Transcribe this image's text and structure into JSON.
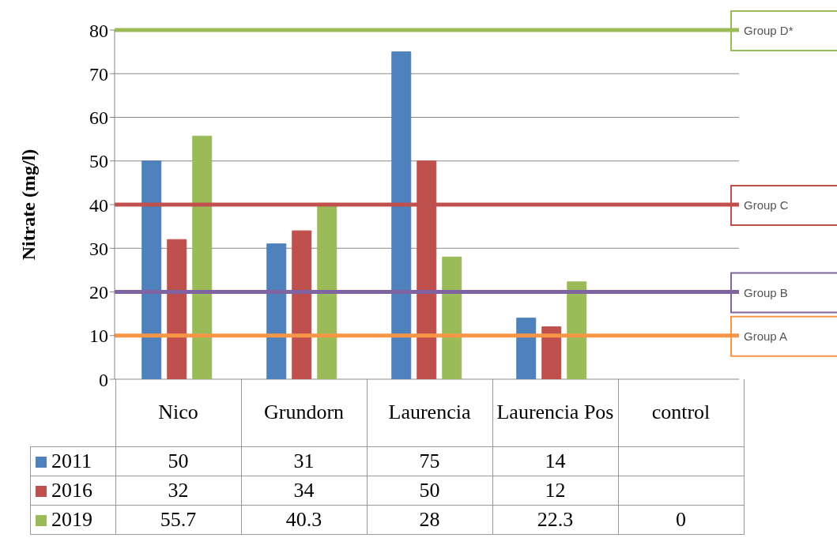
{
  "chart_data": {
    "type": "bar",
    "ylabel": "Nitrate (mg/l)",
    "categories": [
      "Nico",
      "Grundorn",
      "Laurencia",
      "Laurencia Pos",
      "control"
    ],
    "series": [
      {
        "name": "2011",
        "color": "#4f81bd",
        "values": [
          50,
          31,
          75,
          14,
          null
        ]
      },
      {
        "name": "2016",
        "color": "#c0504d",
        "values": [
          32,
          34,
          50,
          12,
          null
        ]
      },
      {
        "name": "2019",
        "color": "#9bbb59",
        "values": [
          55.7,
          40.3,
          28,
          22.3,
          0
        ]
      }
    ],
    "ylim": [
      0,
      80
    ],
    "yticks": [
      0,
      10,
      20,
      30,
      40,
      50,
      60,
      70,
      80
    ],
    "grid": "y",
    "legend": "bottom",
    "data_labels": true,
    "ref_lines": [
      {
        "axis": "y",
        "value": 80,
        "label": "Group D*",
        "color": "#9bbb59"
      },
      {
        "axis": "y",
        "value": 40,
        "label": "Group C",
        "color": "#c0504d"
      },
      {
        "axis": "y",
        "value": 20,
        "label": "Group B",
        "color": "#8064a2"
      },
      {
        "axis": "y",
        "value": 10,
        "label": "Group A",
        "color": "#f79646"
      }
    ]
  }
}
